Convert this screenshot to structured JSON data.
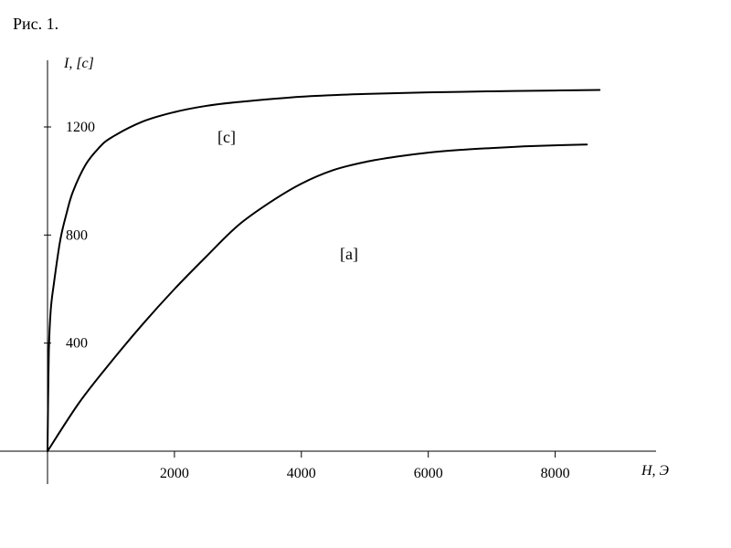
{
  "figure": {
    "caption": "Рис. 1."
  },
  "chart_data": {
    "type": "line",
    "title": "",
    "xlabel": "H, Э",
    "ylabel": "I, [c]",
    "xlim": [
      0,
      9500
    ],
    "ylim": [
      0,
      1450
    ],
    "grid": false,
    "x_ticks": [
      2000,
      4000,
      6000,
      8000
    ],
    "y_ticks": [
      400,
      800,
      1200
    ],
    "series": [
      {
        "name": "[c]",
        "color": "#000000",
        "x": [
          0,
          20,
          50,
          100,
          200,
          300,
          400,
          600,
          800,
          1000,
          1500,
          2000,
          2500,
          3000,
          4000,
          5000,
          6000,
          7000,
          8000,
          8700
        ],
        "y": [
          0,
          360,
          520,
          620,
          780,
          880,
          960,
          1060,
          1120,
          1160,
          1220,
          1255,
          1278,
          1292,
          1312,
          1322,
          1328,
          1332,
          1335,
          1337
        ]
      },
      {
        "name": "[a]",
        "color": "#000000",
        "x": [
          0,
          500,
          1000,
          1500,
          2000,
          2500,
          3000,
          3500,
          4000,
          4500,
          5000,
          5500,
          6000,
          6500,
          7000,
          7500,
          8000,
          8500
        ],
        "y": [
          0,
          180,
          330,
          470,
          600,
          720,
          835,
          920,
          990,
          1040,
          1070,
          1090,
          1105,
          1115,
          1122,
          1128,
          1132,
          1135
        ]
      }
    ]
  }
}
